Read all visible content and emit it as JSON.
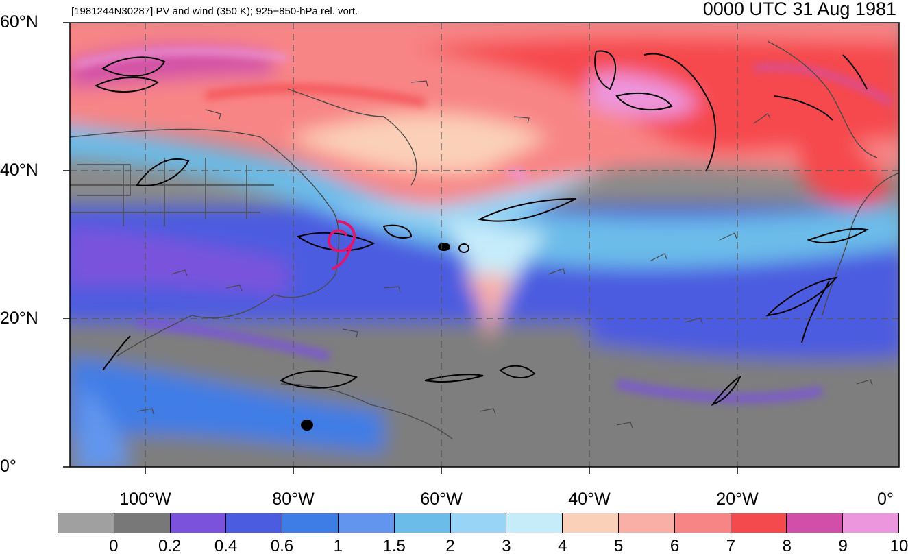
{
  "header": {
    "left_title": "[1981244N30287] PV and wind (350 K); 925−850-hPa rel. vort.",
    "right_title": "0000 UTC 31 Aug 1981"
  },
  "map": {
    "lon_range": [
      -110,
      0
    ],
    "lat_range": [
      0,
      60
    ],
    "lat_labels": [
      {
        "lat": 60,
        "text": "60°N"
      },
      {
        "lat": 40,
        "text": "40°N"
      },
      {
        "lat": 20,
        "text": "20°N"
      },
      {
        "lat": 0,
        "text": "0°"
      }
    ],
    "lon_labels": [
      {
        "lon": -100,
        "text": "100°W"
      },
      {
        "lon": -80,
        "text": "80°W"
      },
      {
        "lon": -60,
        "text": "60°W"
      },
      {
        "lon": -40,
        "text": "40°W"
      },
      {
        "lon": -20,
        "text": "20°W"
      },
      {
        "lon": 0,
        "text": "0°"
      }
    ],
    "storm_marker": {
      "lon": -73.5,
      "lat": 30.5,
      "color": "#e0156e",
      "icon": "tropical-cyclone-icon"
    }
  },
  "colorbar": {
    "colors": [
      "#a0a0a0",
      "#787878",
      "#7a52dc",
      "#4b5ce0",
      "#3f7de6",
      "#6296ee",
      "#6cbce9",
      "#98d4f5",
      "#c6ecfa",
      "#fbd0b8",
      "#f9aea6",
      "#f88586",
      "#f54a4d",
      "#d14fa8",
      "#ec96de"
    ],
    "labels": [
      "0",
      "0.2",
      "0.4",
      "0.6",
      "1",
      "1.5",
      "2",
      "3",
      "4",
      "5",
      "6",
      "7",
      "8",
      "9",
      "10"
    ]
  }
}
